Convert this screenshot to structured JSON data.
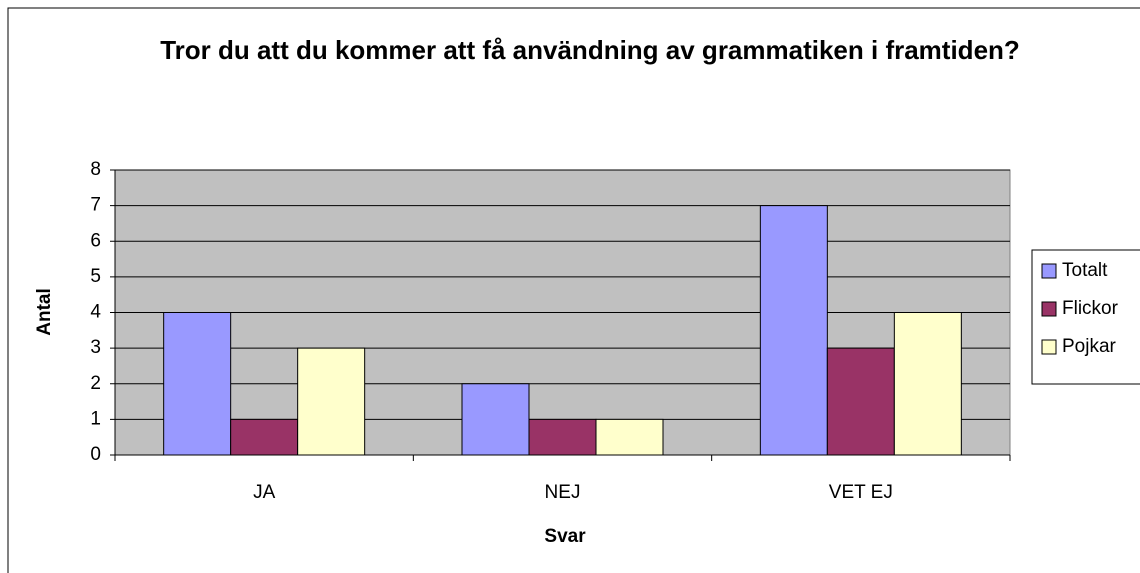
{
  "chart_data": {
    "type": "bar",
    "title": "Tror du att du kommer att få användning av grammatiken i framtiden?",
    "x_label": "Svar",
    "y_label": "Antal",
    "categories": [
      "JA",
      "NEJ",
      "VET EJ"
    ],
    "series": [
      {
        "name": "Totalt",
        "color": "#9999ff",
        "values": [
          4,
          2,
          7
        ]
      },
      {
        "name": "Flickor",
        "color": "#993366",
        "values": [
          1,
          1,
          3
        ]
      },
      {
        "name": "Pojkar",
        "color": "#ffffcc",
        "values": [
          3,
          1,
          4
        ]
      }
    ],
    "ylim": [
      0,
      8
    ],
    "yticks": [
      0,
      1,
      2,
      3,
      4,
      5,
      6,
      7,
      8
    ],
    "grid": true,
    "legend": "right"
  }
}
